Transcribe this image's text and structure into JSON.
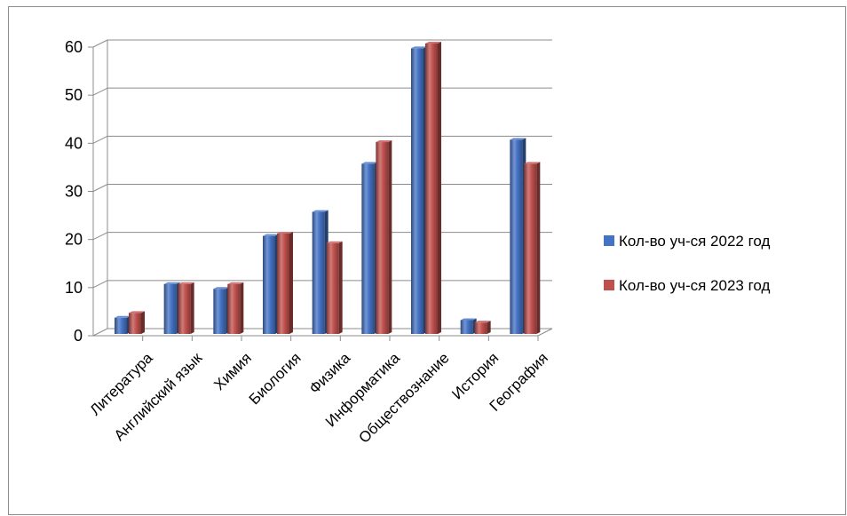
{
  "chart_data": {
    "type": "bar",
    "categories": [
      "Литература",
      "Английский язык",
      "Химия",
      "Биология",
      "Физика",
      "Информатика",
      "Обществознание",
      "История",
      "География"
    ],
    "series": [
      {
        "name": "Кол-во  уч-ся 2022 год",
        "color": "#4472C4",
        "values": [
          3,
          10,
          9,
          20,
          25,
          35,
          59,
          2.5,
          40
        ]
      },
      {
        "name": "Кол-во  уч-ся 2023 год",
        "color": "#C0504D",
        "values": [
          4,
          10,
          10,
          20.5,
          18.5,
          39.5,
          60,
          2,
          35
        ]
      }
    ],
    "ylim": [
      0,
      60
    ],
    "yticks": [
      "0",
      "10",
      "20",
      "30",
      "40",
      "50",
      "60"
    ],
    "grid": true,
    "legend_position": "right",
    "title": "",
    "xlabel": "",
    "ylabel": ""
  }
}
